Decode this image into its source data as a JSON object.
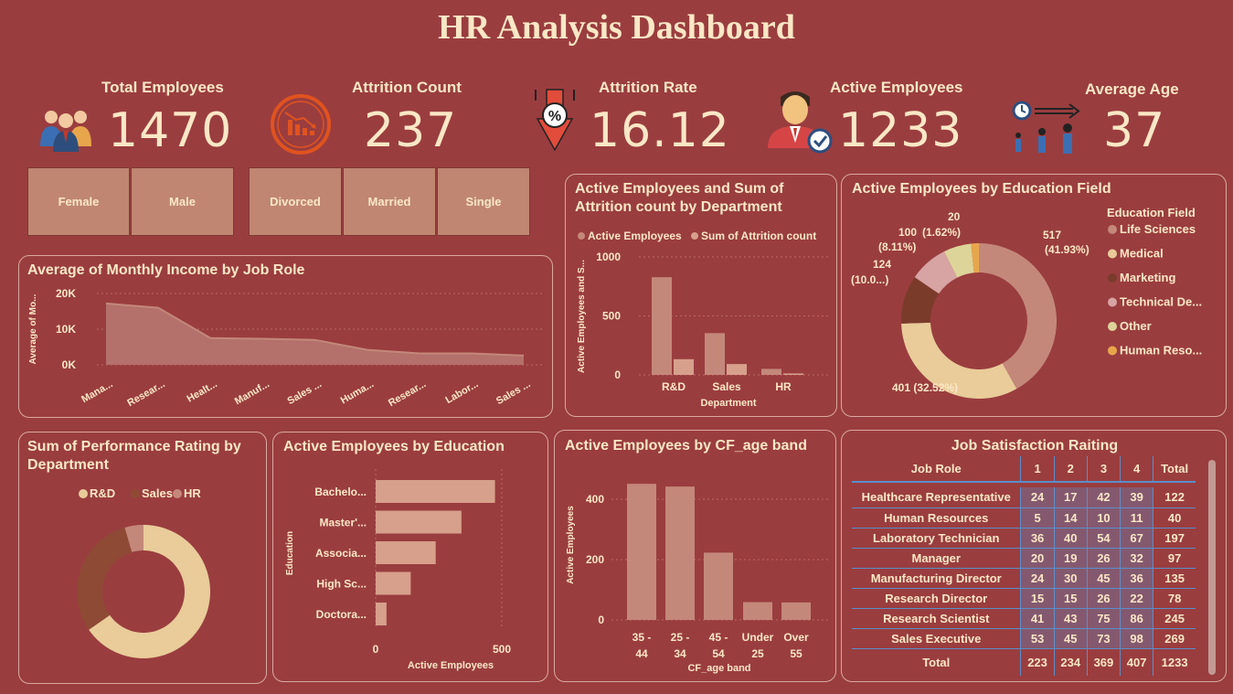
{
  "title": "HR Analysis Dashboard",
  "kpis": [
    {
      "label": "Total Employees",
      "value": "1470",
      "icon": "people-group-icon"
    },
    {
      "label": "Attrition Count",
      "value": "237",
      "icon": "declining-chart-icon"
    },
    {
      "label": "Attrition Rate",
      "value": "16.12",
      "icon": "percent-down-arrow-icon"
    },
    {
      "label": "Active Employees",
      "value": "1233",
      "icon": "verified-employee-icon"
    },
    {
      "label": "Average Age",
      "value": "37",
      "icon": "age-progression-icon"
    }
  ],
  "slicers": {
    "gender": [
      "Female",
      "Male"
    ],
    "marital": [
      "Divorced",
      "Married",
      "Single"
    ]
  },
  "income_chart": {
    "title": "Average of Monthly Income by Job Role",
    "ylabel": "Average of Mo...",
    "yticks": [
      "20K",
      "10K",
      "0K"
    ],
    "chart_data": {
      "type": "area",
      "categories": [
        "Mana...",
        "Resear...",
        "Healt...",
        "Manuf...",
        "Sales ...",
        "Huma...",
        "Resear...",
        "Labor...",
        "Sales ..."
      ],
      "values": [
        17200,
        16000,
        7500,
        7300,
        7000,
        4200,
        3200,
        3200,
        2600
      ],
      "ylim": [
        0,
        20000
      ]
    }
  },
  "dept_chart": {
    "title": "Active Employees and Sum of Attrition count by Department",
    "legend": [
      "Active Employees",
      "Sum of Attrition count"
    ],
    "ylabel": "Active Employees and S...",
    "xlabel": "Department",
    "yticks": [
      "1000",
      "500",
      "0"
    ],
    "chart_data": {
      "type": "bar",
      "categories": [
        "R&D",
        "Sales",
        "HR"
      ],
      "series": [
        {
          "name": "Active Employees",
          "values": [
            828,
            354,
            51
          ]
        },
        {
          "name": "Sum of Attrition count",
          "values": [
            133,
            92,
            12
          ]
        }
      ],
      "ylim": [
        0,
        1000
      ]
    }
  },
  "edu_field_chart": {
    "title": "Active Employees by Education Field",
    "legend_title": "Education Field",
    "legend": [
      "Life Sciences",
      "Medical",
      "Marketing",
      "Technical De...",
      "Other",
      "Human Reso..."
    ],
    "labels": {
      "life": "517",
      "life_pct": "(41.93%)",
      "medical": "401 (32.52%)",
      "marketing": "124",
      "marketing_pct": "(10.0...)",
      "technical": "100",
      "technical_pct": "(8.11%)",
      "other": "20",
      "other_pct": "(1.62%)"
    },
    "chart_data": {
      "type": "pie",
      "categories": [
        "Life Sciences",
        "Medical",
        "Marketing",
        "Technical Degree",
        "Other",
        "Human Resources"
      ],
      "values": [
        517,
        401,
        124,
        100,
        71,
        20
      ],
      "colors": [
        "#c4887a",
        "#e9cc9a",
        "#7a3b2b",
        "#d8a3a3",
        "#ddd49a",
        "#e8a64c"
      ]
    }
  },
  "perf_chart": {
    "title": "Sum of Performance Rating by Department",
    "legend": [
      "R&D",
      "Sales",
      "HR"
    ],
    "chart_data": {
      "type": "pie",
      "categories": [
        "R&D",
        "Sales",
        "HR"
      ],
      "values": [
        2467,
        1139,
        172
      ],
      "colors": [
        "#e9cc9a",
        "#8e4a35",
        "#c4887a"
      ]
    }
  },
  "education_chart": {
    "title": "Active Employees by Education",
    "ylabel": "Education",
    "xlabel": "Active Employees",
    "xticks": [
      "0",
      "500"
    ],
    "chart_data": {
      "type": "bar",
      "categories": [
        "Bachelo...",
        "Master'...",
        "Associa...",
        "High Sc...",
        "Doctora..."
      ],
      "values": [
        473,
        340,
        238,
        139,
        43
      ],
      "xlim": [
        0,
        500
      ]
    }
  },
  "age_chart": {
    "title": "Active Employees by CF_age band",
    "ylabel": "Active Employees",
    "xlabel": "CF_age band",
    "yticks": [
      "400",
      "200",
      "0"
    ],
    "chart_data": {
      "type": "bar",
      "categories": [
        "35 - 44",
        "25 - 34",
        "45 - 54",
        "Under 25",
        "Over 55"
      ],
      "values": [
        451,
        442,
        223,
        59,
        58
      ],
      "ylim": [
        0,
        500
      ]
    }
  },
  "job_table": {
    "title": "Job Satisfaction Raiting",
    "headers": [
      "Job Role",
      "1",
      "2",
      "3",
      "4",
      "Total"
    ],
    "rows": [
      [
        "Healthcare Representative",
        "24",
        "17",
        "42",
        "39",
        "122"
      ],
      [
        "Human Resources",
        "5",
        "14",
        "10",
        "11",
        "40"
      ],
      [
        "Laboratory Technician",
        "36",
        "40",
        "54",
        "67",
        "197"
      ],
      [
        "Manager",
        "20",
        "19",
        "26",
        "32",
        "97"
      ],
      [
        "Manufacturing Director",
        "24",
        "30",
        "45",
        "36",
        "135"
      ],
      [
        "Research Director",
        "15",
        "15",
        "26",
        "22",
        "78"
      ],
      [
        "Research Scientist",
        "41",
        "43",
        "75",
        "86",
        "245"
      ],
      [
        "Sales Executive",
        "53",
        "45",
        "73",
        "98",
        "269"
      ]
    ],
    "total": [
      "Total",
      "223",
      "234",
      "369",
      "407",
      "1233"
    ]
  },
  "colors": {
    "background": "#9a3d3f",
    "text": "#fbe7c6",
    "bar": "#c4887a",
    "bar_light": "#d7a08c",
    "accent_grid": "#5b8ec9"
  }
}
